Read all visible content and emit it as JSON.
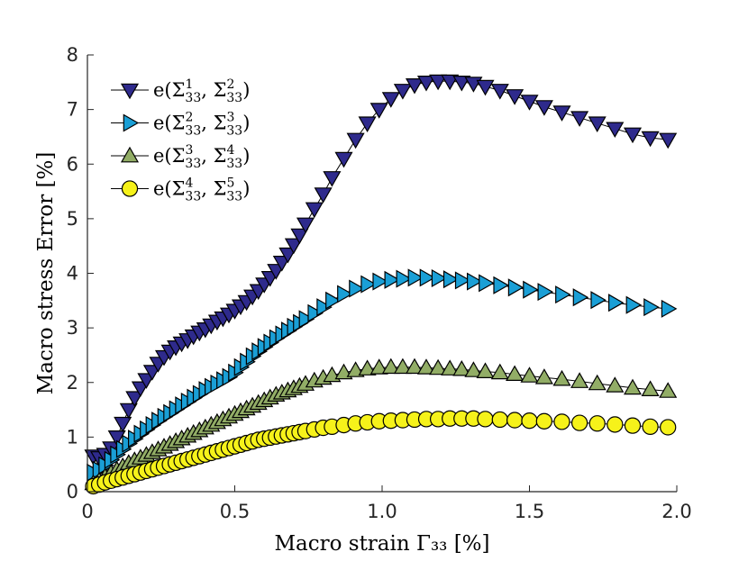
{
  "chart_data": {
    "type": "line",
    "title": "",
    "xlabel": "Macro strain Γ₃₃ [%]",
    "ylabel": "Macro stress Error [%]",
    "xlim": [
      0,
      2.0
    ],
    "ylim": [
      0,
      8
    ],
    "xticks": [
      0,
      0.5,
      1.0,
      1.5,
      2.0
    ],
    "xtick_labels": [
      "0",
      "0.5",
      "1.0",
      "1.5",
      "2.0"
    ],
    "yticks": [
      0,
      1,
      2,
      3,
      4,
      5,
      6,
      7,
      8
    ],
    "ytick_labels": [
      "0",
      "1",
      "2",
      "3",
      "4",
      "5",
      "6",
      "7",
      "8"
    ],
    "grid": false,
    "legend_position": "top-left",
    "series": [
      {
        "name": "e(Σ¹₃₃, Σ²₃₃)",
        "legend_parts": [
          "1",
          "2"
        ],
        "marker": "triangle-down",
        "color": "#2e2a8c",
        "x": [
          0.02,
          0.04,
          0.06,
          0.08,
          0.1,
          0.12,
          0.14,
          0.16,
          0.18,
          0.2,
          0.22,
          0.24,
          0.26,
          0.28,
          0.3,
          0.32,
          0.34,
          0.36,
          0.38,
          0.4,
          0.42,
          0.44,
          0.46,
          0.48,
          0.5,
          0.52,
          0.54,
          0.56,
          0.58,
          0.6,
          0.62,
          0.64,
          0.66,
          0.68,
          0.7,
          0.72,
          0.74,
          0.77,
          0.8,
          0.83,
          0.87,
          0.91,
          0.95,
          0.99,
          1.03,
          1.07,
          1.11,
          1.15,
          1.19,
          1.23,
          1.27,
          1.31,
          1.35,
          1.4,
          1.45,
          1.5,
          1.55,
          1.61,
          1.67,
          1.73,
          1.79,
          1.85,
          1.91,
          1.97
        ],
        "values": [
          0.65,
          0.62,
          0.68,
          0.8,
          1.0,
          1.25,
          1.5,
          1.72,
          1.9,
          2.05,
          2.2,
          2.35,
          2.47,
          2.57,
          2.65,
          2.72,
          2.78,
          2.85,
          2.92,
          2.98,
          3.05,
          3.12,
          3.18,
          3.25,
          3.32,
          3.4,
          3.48,
          3.58,
          3.68,
          3.8,
          3.92,
          4.05,
          4.2,
          4.35,
          4.52,
          4.7,
          4.9,
          5.18,
          5.45,
          5.75,
          6.1,
          6.45,
          6.75,
          7.0,
          7.2,
          7.35,
          7.45,
          7.5,
          7.52,
          7.52,
          7.5,
          7.48,
          7.42,
          7.35,
          7.25,
          7.15,
          7.05,
          6.95,
          6.85,
          6.75,
          6.65,
          6.55,
          6.48,
          6.45
        ]
      },
      {
        "name": "e(Σ²₃₃, Σ³₃₃)",
        "legend_parts": [
          "2",
          "3"
        ],
        "marker": "triangle-right",
        "color": "#1a9fd6",
        "x": [
          0.02,
          0.04,
          0.06,
          0.08,
          0.1,
          0.12,
          0.14,
          0.16,
          0.18,
          0.2,
          0.22,
          0.24,
          0.26,
          0.28,
          0.3,
          0.32,
          0.34,
          0.36,
          0.38,
          0.4,
          0.42,
          0.44,
          0.46,
          0.48,
          0.5,
          0.52,
          0.54,
          0.56,
          0.58,
          0.6,
          0.62,
          0.64,
          0.66,
          0.68,
          0.7,
          0.72,
          0.74,
          0.77,
          0.8,
          0.83,
          0.87,
          0.91,
          0.95,
          0.99,
          1.03,
          1.07,
          1.11,
          1.15,
          1.19,
          1.23,
          1.27,
          1.31,
          1.35,
          1.4,
          1.45,
          1.5,
          1.55,
          1.61,
          1.67,
          1.73,
          1.79,
          1.85,
          1.91,
          1.97
        ],
        "values": [
          0.35,
          0.4,
          0.48,
          0.58,
          0.68,
          0.78,
          0.88,
          0.97,
          1.06,
          1.14,
          1.22,
          1.3,
          1.37,
          1.44,
          1.51,
          1.58,
          1.65,
          1.72,
          1.79,
          1.86,
          1.92,
          1.98,
          2.04,
          2.1,
          2.18,
          2.28,
          2.38,
          2.48,
          2.57,
          2.65,
          2.73,
          2.81,
          2.88,
          2.95,
          3.02,
          3.09,
          3.16,
          3.27,
          3.38,
          3.5,
          3.62,
          3.72,
          3.8,
          3.85,
          3.88,
          3.9,
          3.92,
          3.92,
          3.91,
          3.89,
          3.87,
          3.85,
          3.82,
          3.78,
          3.74,
          3.7,
          3.66,
          3.61,
          3.56,
          3.51,
          3.46,
          3.42,
          3.38,
          3.35
        ]
      },
      {
        "name": "e(Σ³₃₃, Σ⁴₃₃)",
        "legend_parts": [
          "3",
          "4"
        ],
        "marker": "triangle-up",
        "color": "#92ad66",
        "x": [
          0.02,
          0.04,
          0.06,
          0.08,
          0.1,
          0.12,
          0.14,
          0.16,
          0.18,
          0.2,
          0.22,
          0.24,
          0.26,
          0.28,
          0.3,
          0.32,
          0.34,
          0.36,
          0.38,
          0.4,
          0.42,
          0.44,
          0.46,
          0.48,
          0.5,
          0.52,
          0.54,
          0.56,
          0.58,
          0.6,
          0.62,
          0.64,
          0.66,
          0.68,
          0.7,
          0.72,
          0.74,
          0.77,
          0.8,
          0.83,
          0.87,
          0.91,
          0.95,
          0.99,
          1.03,
          1.07,
          1.11,
          1.15,
          1.19,
          1.23,
          1.27,
          1.31,
          1.35,
          1.4,
          1.45,
          1.5,
          1.55,
          1.61,
          1.67,
          1.73,
          1.79,
          1.85,
          1.91,
          1.97
        ],
        "values": [
          0.15,
          0.2,
          0.27,
          0.34,
          0.4,
          0.46,
          0.52,
          0.57,
          0.62,
          0.67,
          0.72,
          0.77,
          0.82,
          0.87,
          0.92,
          0.97,
          1.02,
          1.07,
          1.12,
          1.17,
          1.22,
          1.27,
          1.32,
          1.37,
          1.42,
          1.47,
          1.52,
          1.57,
          1.62,
          1.67,
          1.72,
          1.77,
          1.81,
          1.85,
          1.89,
          1.93,
          1.97,
          2.03,
          2.08,
          2.13,
          2.18,
          2.22,
          2.25,
          2.27,
          2.28,
          2.28,
          2.28,
          2.27,
          2.26,
          2.25,
          2.24,
          2.22,
          2.2,
          2.18,
          2.15,
          2.12,
          2.09,
          2.06,
          2.02,
          1.98,
          1.94,
          1.9,
          1.87,
          1.84
        ]
      },
      {
        "name": "e(Σ⁴₃₃, Σ⁵₃₃)",
        "legend_parts": [
          "4",
          "5"
        ],
        "marker": "circle",
        "color": "#f6f21a",
        "x": [
          0.02,
          0.04,
          0.06,
          0.08,
          0.1,
          0.12,
          0.14,
          0.16,
          0.18,
          0.2,
          0.22,
          0.24,
          0.26,
          0.28,
          0.3,
          0.32,
          0.34,
          0.36,
          0.38,
          0.4,
          0.42,
          0.44,
          0.46,
          0.48,
          0.5,
          0.52,
          0.54,
          0.56,
          0.58,
          0.6,
          0.62,
          0.64,
          0.66,
          0.68,
          0.7,
          0.72,
          0.74,
          0.77,
          0.8,
          0.83,
          0.87,
          0.91,
          0.95,
          0.99,
          1.03,
          1.07,
          1.11,
          1.15,
          1.19,
          1.23,
          1.27,
          1.31,
          1.35,
          1.4,
          1.45,
          1.5,
          1.55,
          1.61,
          1.67,
          1.73,
          1.79,
          1.85,
          1.91,
          1.97
        ],
        "values": [
          0.1,
          0.13,
          0.17,
          0.2,
          0.23,
          0.26,
          0.29,
          0.32,
          0.35,
          0.38,
          0.41,
          0.44,
          0.47,
          0.5,
          0.53,
          0.56,
          0.59,
          0.62,
          0.65,
          0.68,
          0.71,
          0.74,
          0.77,
          0.8,
          0.83,
          0.86,
          0.89,
          0.92,
          0.95,
          0.97,
          0.99,
          1.01,
          1.03,
          1.05,
          1.07,
          1.09,
          1.11,
          1.14,
          1.17,
          1.19,
          1.22,
          1.25,
          1.27,
          1.29,
          1.3,
          1.31,
          1.32,
          1.33,
          1.33,
          1.34,
          1.34,
          1.34,
          1.33,
          1.32,
          1.31,
          1.3,
          1.29,
          1.28,
          1.26,
          1.25,
          1.23,
          1.21,
          1.19,
          1.18
        ]
      }
    ]
  }
}
